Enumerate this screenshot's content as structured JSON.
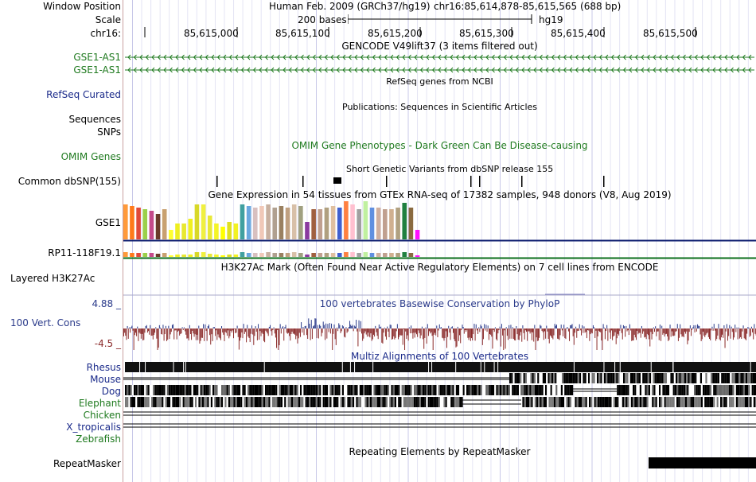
{
  "header": {
    "window_position_label": "Window Position",
    "scale_label": "Scale",
    "chrom_label": "chr16:",
    "assembly": "Human Feb. 2009 (GRCh37/hg19)",
    "position": "chr16:85,614,878-85,615,565 (688 bp)",
    "scale_text": "200 bases",
    "db": "hg19",
    "ruler_ticks": [
      "85,615,000",
      "85,615,100",
      "85,615,200",
      "85,615,300",
      "85,615,400",
      "85,615,500"
    ]
  },
  "tracks": {
    "gencode": {
      "title": "GENCODE V49lift37 (3 items filtered out)",
      "items": [
        "GSE1-AS1",
        "GSE1-AS1"
      ],
      "color": "#1f7a1f"
    },
    "refseq": {
      "title": "RefSeq genes from NCBI",
      "label": "RefSeq Curated",
      "color": "#1a2a8a"
    },
    "publications": {
      "title": "Publications: Sequences in Scientific Articles",
      "labels": [
        "Sequences",
        "SNPs"
      ]
    },
    "omim": {
      "title": "OMIM Gene Phenotypes - Dark Green Can Be Disease-causing",
      "label": "OMIM Genes",
      "color": "#1f7a1f"
    },
    "dbsnp": {
      "title": "Short Genetic Variants from dbSNP release 155",
      "label": "Common dbSNP(155)"
    },
    "gtex": {
      "title": "Gene Expression in 54 tissues from GTEx RNA-seq of 17382 samples, 948 donors (V8, Aug 2019)",
      "genes": [
        "GSE1",
        "RP11-118F19.1"
      ],
      "gene1_color": "#0a1a6e",
      "gene2_color": "#0a6e1a"
    },
    "h3k27ac": {
      "title": "H3K27Ac Mark (Often Found Near Active Regulatory Elements) on 7 cell lines from ENCODE",
      "label": "Layered H3K27Ac"
    },
    "phylop": {
      "title": "100 vertebrates Basewise Conservation by PhyloP",
      "label": "100 Vert. Cons",
      "max_label": "4.88 _",
      "min_label": "-4.5 _",
      "color": "#2a3a8a",
      "neg_color": "#8a2a2a"
    },
    "multiz": {
      "title": "Multiz Alignments of 100 Vertebrates",
      "species": [
        "Rhesus",
        "Mouse",
        "Dog",
        "Elephant",
        "Chicken",
        "X_tropicalis",
        "Zebrafish"
      ]
    },
    "repeatmasker": {
      "title": "Repeating Elements by RepeatMasker",
      "label": "RepeatMasker"
    }
  }
}
